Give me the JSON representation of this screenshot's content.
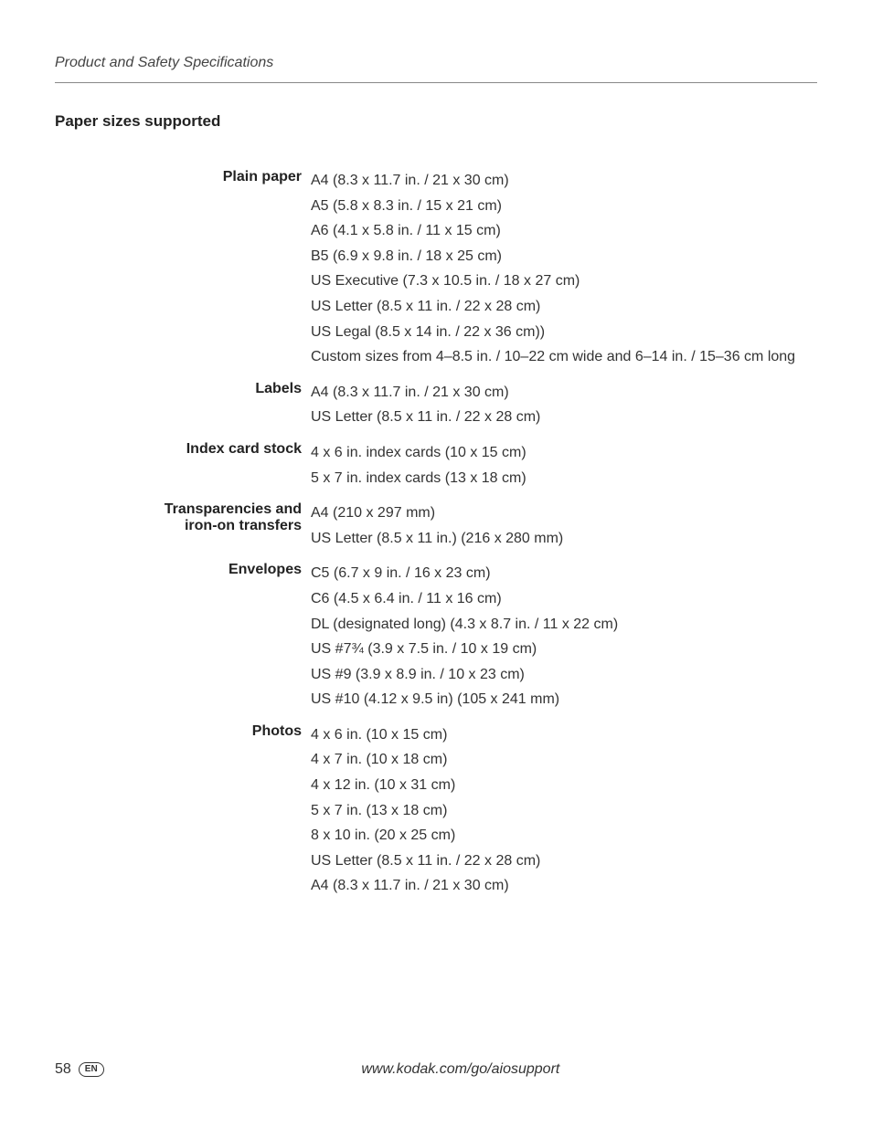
{
  "header": {
    "running_head": "Product and Safety Specifications"
  },
  "section": {
    "title": "Paper sizes supported"
  },
  "specs": [
    {
      "label": "Plain paper",
      "values": [
        "A4 (8.3 x 11.7 in. / 21 x 30 cm)",
        "A5 (5.8 x 8.3 in. / 15 x 21 cm)",
        "A6 (4.1 x 5.8 in. / 11 x 15 cm)",
        "B5 (6.9 x 9.8 in. / 18 x 25 cm)",
        "US Executive (7.3 x 10.5 in. / 18 x 27 cm)",
        "US Letter (8.5 x 11 in. / 22 x 28 cm)",
        "US Legal (8.5 x 14 in. / 22 x 36 cm))",
        "Custom sizes from 4–8.5 in. / 10–22 cm wide and 6–14 in. / 15–36 cm long"
      ]
    },
    {
      "label": "Labels",
      "values": [
        "A4 (8.3 x 11.7 in. / 21 x 30 cm)",
        "US Letter (8.5 x 11 in. / 22 x 28 cm)"
      ]
    },
    {
      "label": "Index card stock",
      "values": [
        "4 x 6 in. index cards (10 x 15 cm)",
        "5 x 7 in. index cards (13 x 18 cm)"
      ]
    },
    {
      "label": "Transparencies and iron-on transfers",
      "label_line1": "Transparencies and",
      "label_line2": "iron-on transfers",
      "values": [
        "A4 (210 x 297 mm)",
        "US Letter (8.5 x 11 in.) (216 x 280 mm)"
      ]
    },
    {
      "label": "Envelopes",
      "values": [
        "C5 (6.7 x 9 in. / 16 x 23 cm)",
        "C6 (4.5 x 6.4 in. / 11 x 16 cm)",
        "DL (designated long) (4.3 x 8.7 in. / 11 x 22 cm)",
        "US #7¾ (3.9 x 7.5 in. / 10 x 19 cm)",
        "US #9 (3.9 x 8.9 in. / 10 x 23 cm)",
        "US #10 (4.12 x 9.5 in) (105 x 241 mm)"
      ]
    },
    {
      "label": "Photos",
      "values": [
        "4 x 6 in. (10 x 15 cm)",
        "4 x 7 in. (10 x 18 cm)",
        "4 x 12 in. (10 x 31 cm)",
        "5 x 7 in. (13 x 18 cm)",
        "8 x 10 in. (20 x 25 cm)",
        "US Letter (8.5 x 11 in. / 22 x 28 cm)",
        "A4 (8.3 x 11.7 in. / 21 x 30 cm)"
      ]
    }
  ],
  "footer": {
    "page_number": "58",
    "lang": "EN",
    "url": "www.kodak.com/go/aiosupport"
  }
}
